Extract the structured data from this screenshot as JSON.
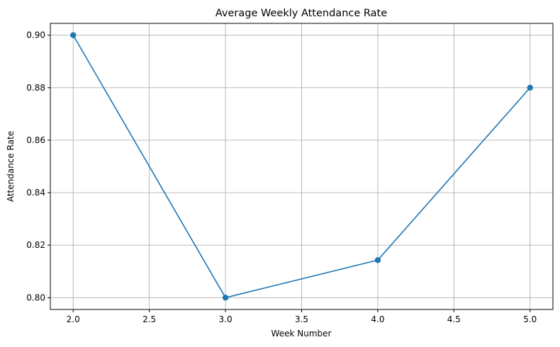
{
  "chart_data": {
    "type": "line",
    "title": "Average Weekly Attendance Rate",
    "xlabel": "Week Number",
    "ylabel": "Attendance Rate",
    "x": [
      2,
      3,
      4,
      5
    ],
    "series": [
      {
        "values": [
          0.9,
          0.8,
          0.8143,
          0.88
        ],
        "color": "#1f77b4",
        "marker": "circle"
      }
    ],
    "xlim": [
      1.85,
      5.15
    ],
    "ylim": [
      0.7955,
      0.9045
    ],
    "x_ticks": [
      2.0,
      2.5,
      3.0,
      3.5,
      4.0,
      4.5,
      5.0
    ],
    "x_tick_labels": [
      "2.0",
      "2.5",
      "3.0",
      "3.5",
      "4.0",
      "4.5",
      "5.0"
    ],
    "y_ticks": [
      0.8,
      0.82,
      0.84,
      0.86,
      0.88,
      0.9
    ],
    "y_tick_labels": [
      "0.80",
      "0.82",
      "0.84",
      "0.86",
      "0.88",
      "0.90"
    ],
    "grid": true,
    "grid_color": "#b0b0b0",
    "legend": false
  }
}
